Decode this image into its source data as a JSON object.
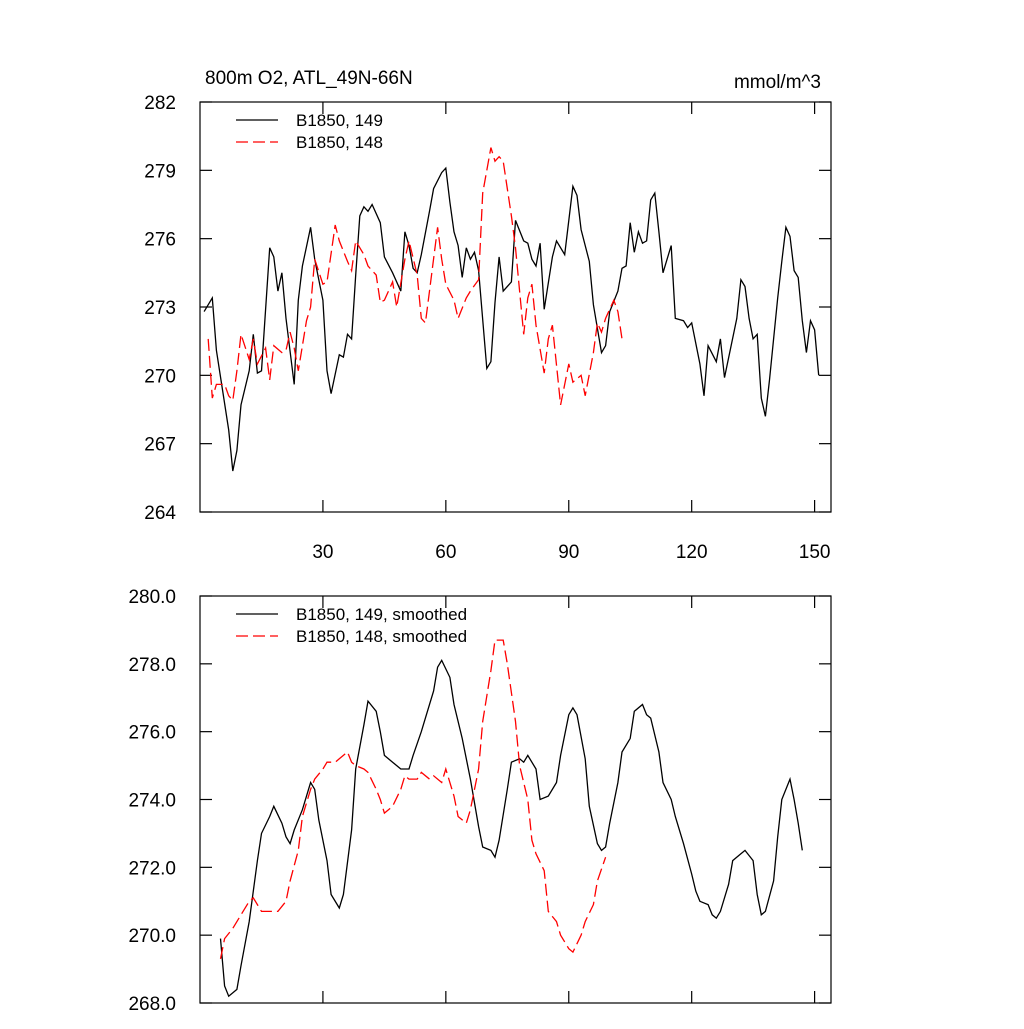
{
  "chart_data": [
    {
      "type": "line",
      "title": "800m O2, ATL_49N-66N",
      "subtitle": "mmol/m^3",
      "xlim": [
        0,
        154
      ],
      "xticks": [
        30,
        60,
        90,
        120,
        150
      ],
      "ylim": [
        264,
        282
      ],
      "yticks": [
        264,
        267,
        270,
        273,
        276,
        279,
        282
      ],
      "series": [
        {
          "name": "B1850, 149",
          "color": "#000000",
          "dash": "none",
          "x": [
            1,
            3,
            4,
            7,
            8,
            9,
            10,
            12,
            13,
            14,
            15,
            17,
            18,
            19,
            20,
            21,
            23,
            24,
            25,
            27,
            28,
            30,
            31,
            32,
            34,
            35,
            36,
            37,
            38,
            39,
            40,
            41,
            42,
            44,
            45,
            47,
            49,
            50,
            51,
            52,
            53,
            54,
            56,
            57,
            59,
            60,
            61,
            62,
            63,
            64,
            65,
            66,
            67,
            68,
            70,
            71,
            72,
            73,
            74,
            76,
            77,
            79,
            80,
            81,
            82,
            83,
            84,
            86,
            87,
            89,
            91,
            92,
            93,
            95,
            96,
            98,
            99,
            100,
            102,
            103,
            104,
            105,
            106,
            107,
            108,
            109,
            110,
            111,
            112,
            113,
            115,
            116,
            118,
            119,
            120,
            122,
            123,
            124,
            126,
            127,
            128,
            131,
            132,
            133,
            134,
            135,
            136,
            137,
            138,
            139,
            141,
            142,
            143,
            144,
            145,
            146,
            147,
            148,
            149,
            150,
            151
          ],
          "values": [
            272.8,
            273.4,
            271.1,
            267.6,
            265.8,
            266.7,
            268.7,
            270.2,
            271.8,
            270.1,
            270.2,
            275.6,
            275.2,
            273.7,
            274.5,
            272.5,
            269.6,
            273.3,
            274.8,
            276.5,
            275.1,
            273.3,
            270.2,
            269.2,
            270.9,
            270.8,
            271.8,
            271.6,
            274.4,
            277.0,
            277.4,
            277.2,
            277.5,
            276.7,
            275.2,
            274.5,
            273.7,
            276.3,
            275.7,
            274.7,
            274.5,
            275.3,
            277.2,
            278.2,
            278.9,
            279.1,
            277.6,
            276.3,
            275.7,
            274.3,
            275.6,
            275.1,
            275.4,
            274.6,
            270.3,
            270.6,
            273.2,
            275.2,
            273.7,
            274.1,
            276.8,
            275.9,
            275.8,
            275.1,
            274.8,
            275.8,
            272.9,
            275.2,
            275.9,
            275.3,
            278.3,
            277.9,
            276.4,
            275.0,
            273.1,
            271.0,
            271.3,
            272.8,
            273.7,
            274.7,
            274.8,
            276.7,
            275.4,
            276.3,
            275.8,
            275.9,
            277.7,
            278.0,
            276.3,
            274.5,
            275.7,
            272.5,
            272.4,
            272.1,
            272.3,
            270.5,
            269.1,
            271.3,
            270.6,
            271.6,
            269.9,
            272.5,
            274.2,
            273.9,
            272.5,
            271.6,
            271.8,
            269.0,
            268.2,
            269.8,
            273.4,
            275.0,
            276.5,
            276.1,
            274.6,
            274.3,
            272.4,
            271.0,
            272.4,
            272.0,
            270.0
          ]
        },
        {
          "name": "B1850, 148",
          "color": "#ff0000",
          "dash": "dashed",
          "x": [
            2,
            3,
            4,
            6,
            7,
            8,
            9,
            10,
            12,
            13,
            14,
            16,
            17,
            18,
            20,
            21,
            22,
            23,
            24,
            26,
            27,
            28,
            30,
            31,
            33,
            34,
            36,
            37,
            38,
            40,
            41,
            43,
            44,
            45,
            47,
            48,
            50,
            51,
            53,
            54,
            55,
            56,
            58,
            59,
            60,
            62,
            63,
            65,
            66,
            68,
            69,
            71,
            72,
            73,
            74,
            76,
            77,
            79,
            80,
            81,
            82,
            84,
            85,
            86,
            88,
            89,
            90,
            91,
            93,
            94,
            96,
            97,
            98,
            99,
            101,
            102,
            103
          ],
          "values": [
            271.6,
            269.0,
            269.6,
            269.6,
            269.1,
            268.9,
            270.2,
            271.8,
            270.7,
            271.6,
            270.5,
            271.2,
            269.8,
            271.3,
            271.0,
            271.1,
            271.9,
            271.2,
            270.2,
            272.4,
            273.0,
            275.1,
            274.0,
            274.1,
            276.6,
            275.9,
            275.0,
            274.6,
            275.9,
            275.3,
            274.8,
            274.4,
            273.2,
            273.3,
            274.1,
            273.0,
            275.1,
            275.9,
            274.4,
            272.5,
            272.3,
            273.7,
            276.5,
            275.1,
            274.0,
            273.3,
            272.5,
            273.4,
            273.7,
            274.2,
            278.0,
            280.0,
            279.4,
            279.6,
            279.4,
            277.0,
            275.6,
            271.8,
            273.4,
            274.0,
            272.2,
            270.1,
            271.6,
            272.2,
            268.7,
            269.6,
            270.5,
            269.7,
            270.0,
            269.1,
            271.0,
            272.3,
            271.9,
            272.5,
            273.3,
            272.8,
            271.6
          ]
        }
      ]
    },
    {
      "type": "line",
      "xlim": [
        0,
        154
      ],
      "xticks": [
        30,
        60,
        90,
        120,
        150
      ],
      "ylim": [
        268,
        280
      ],
      "yticks": [
        {
          "value": 268,
          "label": "268.0"
        },
        {
          "value": 270,
          "label": "270.0"
        },
        {
          "value": 272,
          "label": "272.0"
        },
        {
          "value": 274,
          "label": "274.0"
        },
        {
          "value": 276,
          "label": "276.0"
        },
        {
          "value": 278,
          "label": "278.0"
        },
        {
          "value": 280,
          "label": "280.0"
        }
      ],
      "series": [
        {
          "name": "B1850, 149, smoothed",
          "color": "#000000",
          "dash": "none",
          "x": [
            5,
            6,
            7,
            9,
            10,
            12,
            14,
            15,
            17,
            18,
            20,
            21,
            22,
            23,
            25,
            27,
            28,
            29,
            31,
            32,
            34,
            35,
            37,
            38,
            40,
            41,
            43,
            44,
            45,
            47,
            49,
            51,
            52,
            54,
            55,
            57,
            58,
            59,
            61,
            62,
            64,
            66,
            68,
            69,
            71,
            72,
            73,
            75,
            76,
            78,
            79,
            80,
            82,
            83,
            85,
            87,
            88,
            90,
            91,
            92,
            94,
            95,
            97,
            98,
            99,
            100,
            102,
            103,
            105,
            106,
            108,
            109,
            110,
            112,
            113,
            115,
            116,
            118,
            120,
            121,
            122,
            124,
            125,
            126,
            127,
            129,
            130,
            132,
            133,
            135,
            136,
            137,
            138,
            140,
            141,
            142,
            144,
            145,
            146,
            147
          ],
          "values": [
            269.9,
            268.5,
            268.2,
            268.4,
            269.1,
            270.4,
            272.2,
            273.0,
            273.5,
            273.8,
            273.3,
            272.9,
            272.7,
            273.1,
            273.7,
            274.5,
            274.3,
            273.4,
            272.2,
            271.2,
            270.8,
            271.2,
            273.1,
            274.9,
            276.2,
            276.9,
            276.6,
            276.0,
            275.3,
            275.1,
            274.9,
            274.9,
            275.3,
            276.0,
            276.4,
            277.2,
            277.9,
            278.1,
            277.6,
            276.8,
            275.8,
            274.6,
            273.2,
            272.6,
            272.5,
            272.3,
            272.8,
            274.3,
            275.1,
            275.2,
            275.1,
            275.3,
            274.9,
            274.0,
            274.1,
            274.5,
            275.3,
            276.5,
            276.7,
            276.5,
            275.2,
            273.8,
            272.7,
            272.5,
            272.6,
            273.3,
            274.5,
            275.4,
            275.8,
            276.6,
            276.8,
            276.5,
            276.4,
            275.4,
            274.5,
            274.0,
            273.5,
            272.7,
            271.8,
            271.3,
            271.0,
            270.9,
            270.6,
            270.5,
            270.7,
            271.5,
            272.2,
            272.4,
            272.5,
            272.2,
            271.2,
            270.6,
            270.7,
            271.6,
            272.9,
            274.0,
            274.6,
            274.0,
            273.3,
            272.5
          ]
        },
        {
          "name": "B1850, 148, smoothed",
          "color": "#ff0000",
          "dash": "dashed",
          "x": [
            5,
            6,
            8,
            10,
            12,
            13,
            15,
            17,
            19,
            21,
            22,
            24,
            25,
            27,
            28,
            30,
            31,
            33,
            34,
            36,
            37,
            38,
            40,
            41,
            43,
            44,
            45,
            47,
            49,
            50,
            51,
            53,
            54,
            56,
            57,
            59,
            60,
            62,
            63,
            65,
            66,
            68,
            69,
            71,
            72,
            74,
            75,
            77,
            78,
            80,
            81,
            82,
            84,
            85,
            87,
            88,
            90,
            91,
            93,
            94,
            96,
            97,
            99
          ],
          "values": [
            269.3,
            269.9,
            270.2,
            270.6,
            271.0,
            271.1,
            270.7,
            270.7,
            270.7,
            271.0,
            271.6,
            272.5,
            273.5,
            274.3,
            274.6,
            274.9,
            275.1,
            275.1,
            275.2,
            275.4,
            275.1,
            275.0,
            274.9,
            274.8,
            274.3,
            274.0,
            273.6,
            273.8,
            274.3,
            274.7,
            274.6,
            274.6,
            274.8,
            274.6,
            274.7,
            274.5,
            274.9,
            274.1,
            273.5,
            273.3,
            273.7,
            274.9,
            276.3,
            277.8,
            278.7,
            278.7,
            278.0,
            276.3,
            275.0,
            274.0,
            272.8,
            272.4,
            271.9,
            270.7,
            270.4,
            270.0,
            269.6,
            269.5,
            270.0,
            270.4,
            270.9,
            271.6,
            272.3
          ]
        }
      ]
    }
  ]
}
